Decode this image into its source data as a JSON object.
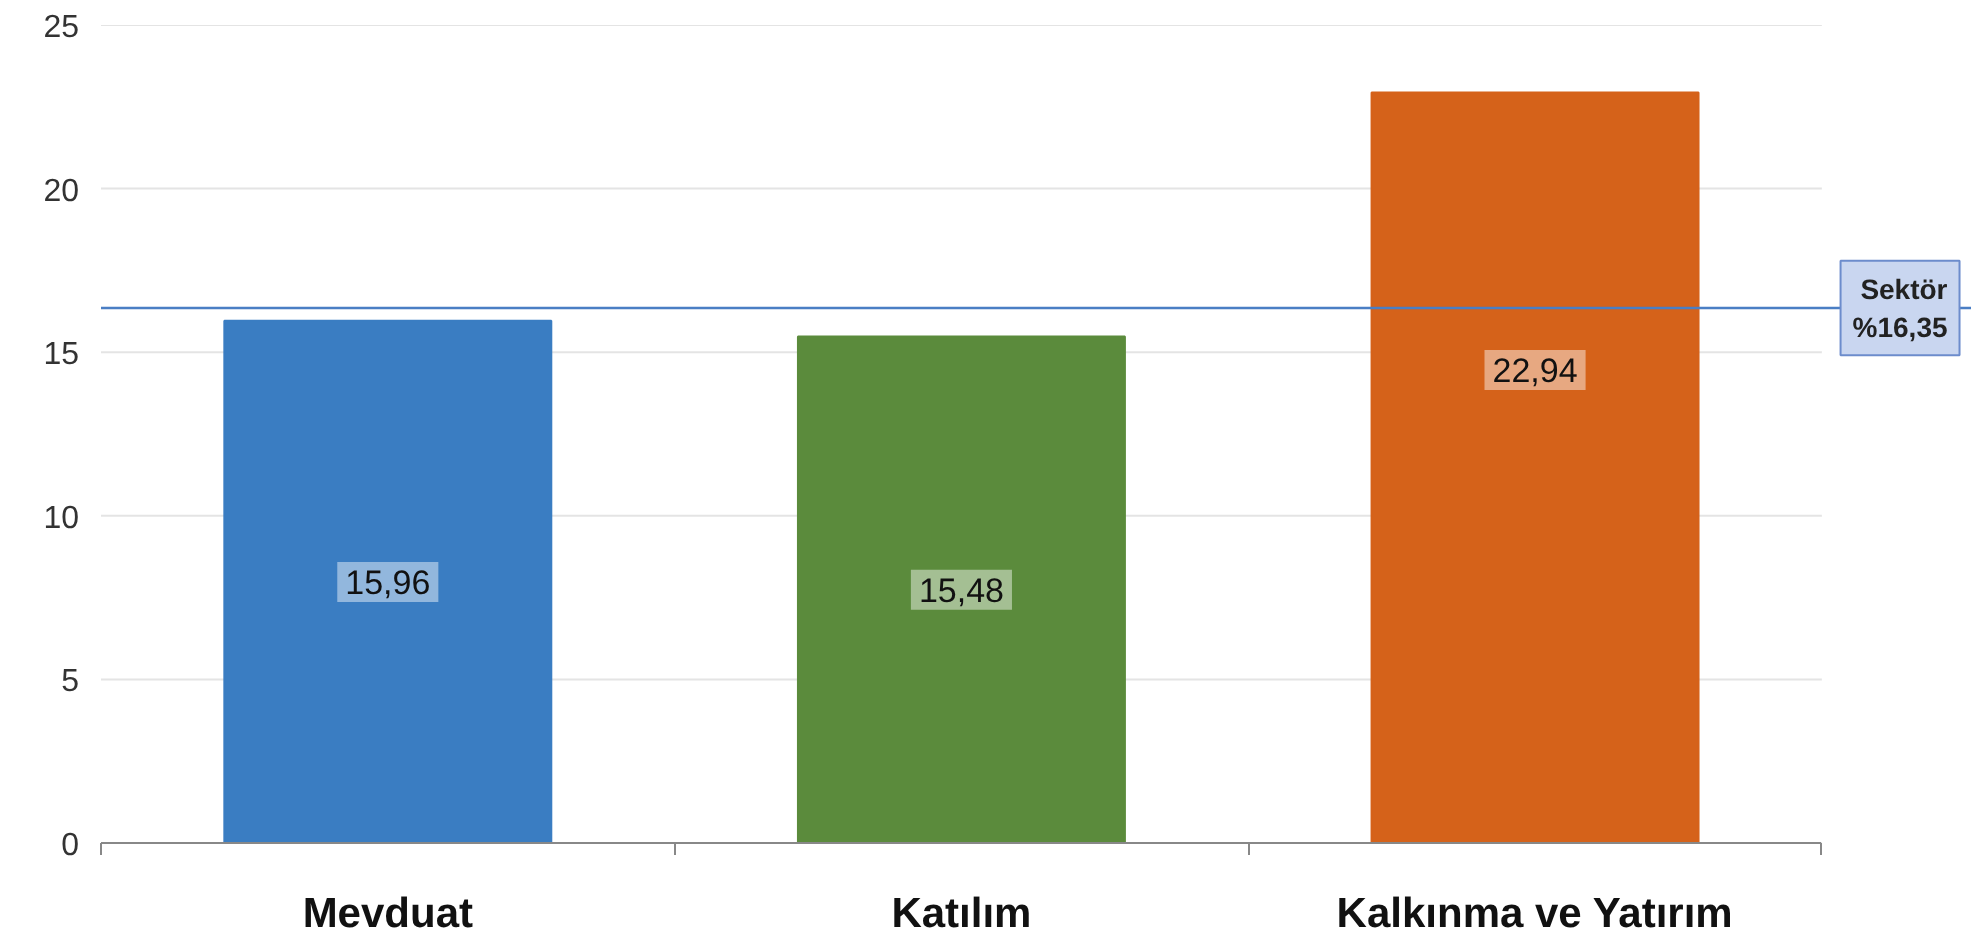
{
  "chart_data": {
    "type": "bar",
    "categories": [
      "Mevduat",
      "Katılım",
      "Kalkınma ve Yatırım"
    ],
    "values": [
      15.96,
      15.48,
      22.94
    ],
    "colors": [
      "#3a7dc2",
      "#5b8b3c",
      "#d5621a"
    ],
    "value_labels": [
      "15,96",
      "15,48",
      "22,94"
    ],
    "ylim": [
      0,
      25
    ],
    "yticks": [
      0,
      5,
      10,
      15,
      20,
      25
    ],
    "grid": "y",
    "ref_lines": [
      {
        "axis": "y",
        "value": 16.35,
        "label": "Sektör\n%16,35",
        "color": "#4a7ec4"
      }
    ]
  }
}
